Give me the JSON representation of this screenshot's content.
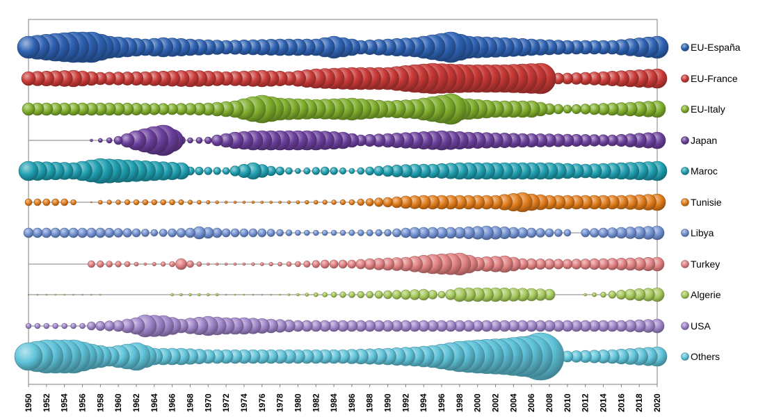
{
  "chart_data": {
    "type": "bubble-timeline",
    "title": "",
    "xlabel": "",
    "ylabel": "",
    "xlim": [
      1950,
      2020
    ],
    "x_ticks": [
      1950,
      1952,
      1954,
      1956,
      1958,
      1960,
      1962,
      1964,
      1966,
      1968,
      1970,
      1972,
      1974,
      1976,
      1978,
      1980,
      1982,
      1984,
      1986,
      1988,
      1990,
      1992,
      1994,
      1996,
      1998,
      2000,
      2002,
      2004,
      2006,
      2008,
      2010,
      2012,
      2014,
      2016,
      2018,
      2020
    ],
    "x_tick_labels": [
      "1950",
      "1952",
      "1954",
      "1956",
      "1958",
      "1960",
      "1962",
      "1964",
      "1966",
      "1968",
      "1970",
      "1972",
      "1974",
      "1976",
      "1978",
      "1980",
      "1982",
      "1984",
      "1986",
      "1988",
      "1990",
      "1992",
      "1994",
      "1996",
      "1998",
      "2000",
      "2002",
      "2004",
      "2006",
      "2008",
      "2010",
      "2012",
      "2014",
      "2016",
      "2018",
      "2020"
    ],
    "legend": {
      "position": "right"
    },
    "series": [
      {
        "name": "EU-España",
        "color": "#2e62b3",
        "keys": [
          [
            1950,
            16
          ],
          [
            1953,
            20
          ],
          [
            1955,
            22
          ],
          [
            1957,
            22
          ],
          [
            1959,
            16
          ],
          [
            1963,
            12
          ],
          [
            1965,
            14
          ],
          [
            1968,
            12
          ],
          [
            1972,
            10
          ],
          [
            1978,
            12
          ],
          [
            1982,
            12
          ],
          [
            1984,
            16
          ],
          [
            1987,
            10
          ],
          [
            1990,
            12
          ],
          [
            1993,
            14
          ],
          [
            1995,
            18
          ],
          [
            1997,
            22
          ],
          [
            1999,
            16
          ],
          [
            2003,
            14
          ],
          [
            2006,
            12
          ],
          [
            2010,
            10
          ],
          [
            2015,
            10
          ],
          [
            2020,
            16
          ]
        ]
      },
      {
        "name": "EU-France",
        "color": "#c93a37",
        "keys": [
          [
            1950,
            10
          ],
          [
            1955,
            12
          ],
          [
            1958,
            9
          ],
          [
            1963,
            10
          ],
          [
            1968,
            12
          ],
          [
            1972,
            10
          ],
          [
            1976,
            12
          ],
          [
            1979,
            10
          ],
          [
            1982,
            14
          ],
          [
            1986,
            16
          ],
          [
            1990,
            16
          ],
          [
            1993,
            20
          ],
          [
            1995,
            22
          ],
          [
            1999,
            20
          ],
          [
            2003,
            20
          ],
          [
            2007,
            22
          ],
          [
            2008,
            8
          ],
          [
            2010,
            8
          ],
          [
            2014,
            10
          ],
          [
            2017,
            12
          ],
          [
            2020,
            14
          ]
        ]
      },
      {
        "name": "EU-Italy",
        "color": "#7fae2c",
        "keys": [
          [
            1950,
            9
          ],
          [
            1960,
            9
          ],
          [
            1966,
            8
          ],
          [
            1970,
            9
          ],
          [
            1973,
            12
          ],
          [
            1975,
            18
          ],
          [
            1976,
            20
          ],
          [
            1978,
            16
          ],
          [
            1982,
            14
          ],
          [
            1986,
            16
          ],
          [
            1990,
            12
          ],
          [
            1993,
            14
          ],
          [
            1995,
            18
          ],
          [
            1997,
            22
          ],
          [
            1998,
            16
          ],
          [
            2002,
            12
          ],
          [
            2006,
            12
          ],
          [
            2008,
            8
          ],
          [
            2010,
            6
          ],
          [
            2013,
            8
          ],
          [
            2017,
            10
          ],
          [
            2020,
            12
          ]
        ]
      },
      {
        "name": "Japan",
        "color": "#6b3f9c",
        "keys": [
          [
            1950,
            0
          ],
          [
            1956,
            0
          ],
          [
            1957,
            2
          ],
          [
            1959,
            4
          ],
          [
            1960,
            6
          ],
          [
            1962,
            14
          ],
          [
            1964,
            20
          ],
          [
            1965,
            22
          ],
          [
            1966,
            16
          ],
          [
            1967,
            6
          ],
          [
            1968,
            4
          ],
          [
            1970,
            5
          ],
          [
            1971,
            8
          ],
          [
            1973,
            12
          ],
          [
            1975,
            14
          ],
          [
            1978,
            14
          ],
          [
            1982,
            14
          ],
          [
            1985,
            12
          ],
          [
            1987,
            8
          ],
          [
            1990,
            10
          ],
          [
            1993,
            12
          ],
          [
            1996,
            14
          ],
          [
            1999,
            12
          ],
          [
            2005,
            10
          ],
          [
            2010,
            9
          ],
          [
            2015,
            8
          ],
          [
            2020,
            12
          ]
        ]
      },
      {
        "name": "Maroc",
        "color": "#1f9fb0",
        "keys": [
          [
            1950,
            14
          ],
          [
            1955,
            12
          ],
          [
            1957,
            16
          ],
          [
            1958,
            18
          ],
          [
            1961,
            16
          ],
          [
            1964,
            14
          ],
          [
            1967,
            12
          ],
          [
            1968,
            6
          ],
          [
            1972,
            5
          ],
          [
            1975,
            12
          ],
          [
            1977,
            7
          ],
          [
            1980,
            4
          ],
          [
            1983,
            6
          ],
          [
            1986,
            4
          ],
          [
            1990,
            8
          ],
          [
            1993,
            10
          ],
          [
            1995,
            10
          ],
          [
            1998,
            12
          ],
          [
            2003,
            12
          ],
          [
            2008,
            12
          ],
          [
            2012,
            10
          ],
          [
            2016,
            12
          ],
          [
            2020,
            14
          ]
        ]
      },
      {
        "name": "Tunisie",
        "color": "#e07b1a",
        "keys": [
          [
            1950,
            5
          ],
          [
            1954,
            5
          ],
          [
            1955,
            4
          ],
          [
            1956,
            0
          ],
          [
            1957,
            1
          ],
          [
            1958,
            3
          ],
          [
            1962,
            4
          ],
          [
            1966,
            4
          ],
          [
            1969,
            3
          ],
          [
            1972,
            2
          ],
          [
            1975,
            2
          ],
          [
            1978,
            2
          ],
          [
            1982,
            3
          ],
          [
            1986,
            4
          ],
          [
            1990,
            7
          ],
          [
            1992,
            9
          ],
          [
            1994,
            10
          ],
          [
            1998,
            10
          ],
          [
            2002,
            10
          ],
          [
            2005,
            14
          ],
          [
            2006,
            12
          ],
          [
            2008,
            10
          ],
          [
            2012,
            10
          ],
          [
            2016,
            10
          ],
          [
            2020,
            12
          ]
        ]
      },
      {
        "name": "Libya",
        "color": "#6f8fd0",
        "keys": [
          [
            1950,
            7
          ],
          [
            1958,
            7
          ],
          [
            1962,
            6
          ],
          [
            1964,
            5
          ],
          [
            1968,
            7
          ],
          [
            1969,
            9
          ],
          [
            1972,
            6
          ],
          [
            1976,
            6
          ],
          [
            1980,
            4
          ],
          [
            1985,
            4
          ],
          [
            1990,
            5
          ],
          [
            1993,
            8
          ],
          [
            1998,
            8
          ],
          [
            2001,
            10
          ],
          [
            2004,
            8
          ],
          [
            2008,
            6
          ],
          [
            2010,
            5
          ],
          [
            2011,
            0
          ],
          [
            2012,
            6
          ],
          [
            2016,
            8
          ],
          [
            2020,
            10
          ]
        ]
      },
      {
        "name": "Turkey",
        "color": "#e07f80",
        "keys": [
          [
            1950,
            0
          ],
          [
            1956,
            0
          ],
          [
            1957,
            5
          ],
          [
            1961,
            4
          ],
          [
            1963,
            2
          ],
          [
            1966,
            4
          ],
          [
            1967,
            8
          ],
          [
            1968,
            5
          ],
          [
            1970,
            2
          ],
          [
            1974,
            2
          ],
          [
            1978,
            3
          ],
          [
            1980,
            4
          ],
          [
            1983,
            6
          ],
          [
            1986,
            6
          ],
          [
            1988,
            8
          ],
          [
            1992,
            10
          ],
          [
            1995,
            14
          ],
          [
            1998,
            16
          ],
          [
            2000,
            10
          ],
          [
            2003,
            12
          ],
          [
            2005,
            8
          ],
          [
            2010,
            7
          ],
          [
            2014,
            8
          ],
          [
            2020,
            10
          ]
        ]
      },
      {
        "name": "Algerie",
        "color": "#a4c85a",
        "keys": [
          [
            1950,
            1
          ],
          [
            1958,
            1
          ],
          [
            1960,
            0
          ],
          [
            1965,
            0
          ],
          [
            1966,
            2
          ],
          [
            1971,
            2
          ],
          [
            1972,
            1
          ],
          [
            1978,
            1
          ],
          [
            1980,
            2
          ],
          [
            1984,
            4
          ],
          [
            1988,
            5
          ],
          [
            1992,
            7
          ],
          [
            1994,
            8
          ],
          [
            1996,
            5
          ],
          [
            1998,
            10
          ],
          [
            2002,
            10
          ],
          [
            2006,
            9
          ],
          [
            2008,
            8
          ],
          [
            2009,
            0
          ],
          [
            2011,
            0
          ],
          [
            2012,
            2
          ],
          [
            2014,
            4
          ],
          [
            2017,
            8
          ],
          [
            2020,
            10
          ]
        ]
      },
      {
        "name": "USA",
        "color": "#9d83c7",
        "keys": [
          [
            1950,
            4
          ],
          [
            1956,
            4
          ],
          [
            1957,
            6
          ],
          [
            1960,
            8
          ],
          [
            1962,
            12
          ],
          [
            1963,
            16
          ],
          [
            1965,
            15
          ],
          [
            1967,
            10
          ],
          [
            1970,
            14
          ],
          [
            1972,
            12
          ],
          [
            1974,
            12
          ],
          [
            1977,
            10
          ],
          [
            1980,
            8
          ],
          [
            1985,
            8
          ],
          [
            1990,
            8
          ],
          [
            1996,
            8
          ],
          [
            2000,
            8
          ],
          [
            2004,
            8
          ],
          [
            2008,
            8
          ],
          [
            2012,
            8
          ],
          [
            2016,
            8
          ],
          [
            2020,
            10
          ]
        ]
      },
      {
        "name": "Others",
        "color": "#5fc3d9",
        "keys": [
          [
            1950,
            20
          ],
          [
            1952,
            24
          ],
          [
            1955,
            24
          ],
          [
            1957,
            18
          ],
          [
            1959,
            14
          ],
          [
            1961,
            18
          ],
          [
            1962,
            20
          ],
          [
            1964,
            12
          ],
          [
            1967,
            12
          ],
          [
            1970,
            10
          ],
          [
            1975,
            10
          ],
          [
            1980,
            10
          ],
          [
            1985,
            10
          ],
          [
            1990,
            12
          ],
          [
            1993,
            14
          ],
          [
            1995,
            16
          ],
          [
            1998,
            22
          ],
          [
            2000,
            24
          ],
          [
            2003,
            26
          ],
          [
            2006,
            30
          ],
          [
            2007,
            34
          ],
          [
            2008,
            8
          ],
          [
            2010,
            8
          ],
          [
            2015,
            10
          ],
          [
            2020,
            14
          ]
        ]
      }
    ]
  }
}
